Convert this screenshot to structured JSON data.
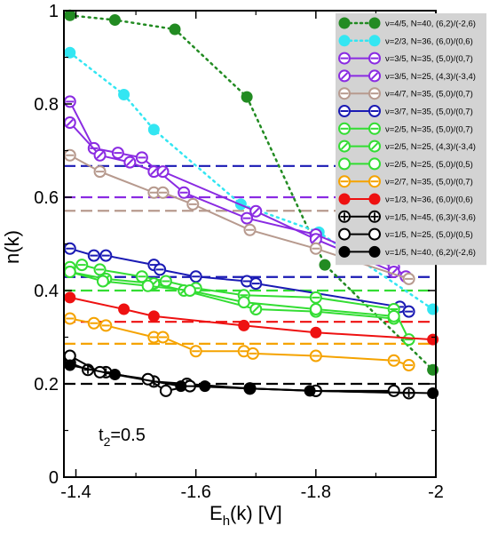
{
  "chart_data": {
    "type": "line",
    "xlabel_main": "E",
    "xlabel_sub": "h",
    "xlabel_rest": "(k) [V]",
    "ylabel": "n(k)",
    "xlim": [
      -1.38,
      -2.0
    ],
    "ylim": [
      0,
      1.0
    ],
    "xticks": [
      -1.4,
      -1.6,
      -1.8,
      -2.0
    ],
    "xtick_labels": [
      "-1.4",
      "-1.6",
      "-1.8",
      "-2"
    ],
    "yticks": [
      0,
      0.2,
      0.4,
      0.6,
      0.8,
      1.0
    ],
    "ytick_labels": [
      "0",
      "0.2",
      "0.4",
      "0.6",
      "0.8",
      "1"
    ],
    "annotation_main": "t",
    "annotation_sub": "2",
    "annotation_rest": "=0.5",
    "legend_position": "top-right",
    "hlines": [
      {
        "y": 0.667,
        "color": "#1a1ab4"
      },
      {
        "y": 0.6,
        "color": "#8a2be2"
      },
      {
        "y": 0.571,
        "color": "#b79a8e"
      },
      {
        "y": 0.429,
        "color": "#1a1ab4"
      },
      {
        "y": 0.4,
        "color": "#33dd33"
      },
      {
        "y": 0.333,
        "color": "#ee1111"
      },
      {
        "y": 0.286,
        "color": "#f5a300"
      },
      {
        "y": 0.2,
        "color": "#000000"
      }
    ],
    "series": [
      {
        "name": "ν=4/5, N=40, (6,2)/(-2,6)",
        "color": "#228b22",
        "marker": "filled",
        "line": "dotted",
        "x": [
          -1.39,
          -1.465,
          -1.565,
          -1.685,
          -1.815,
          -1.995
        ],
        "y": [
          0.99,
          0.98,
          0.96,
          0.815,
          0.455,
          0.23
        ]
      },
      {
        "name": "ν=2/3, N=36, (6,0)/(0,6)",
        "color": "#33e6f2",
        "marker": "filled",
        "line": "dotted",
        "x": [
          -1.39,
          -1.48,
          -1.53,
          -1.675,
          -1.805,
          -1.995
        ],
        "y": [
          0.91,
          0.82,
          0.745,
          0.585,
          0.525,
          0.36
        ]
      },
      {
        "name": "ν=3/5, N=35, (5,0)/(0,7)",
        "color": "#8a2be2",
        "marker": "bar",
        "line": "solid",
        "x": [
          -1.39,
          -1.43,
          -1.47,
          -1.51,
          -1.58,
          -1.685,
          -1.8,
          -1.93,
          -1.95
        ],
        "y": [
          0.805,
          0.705,
          0.695,
          0.685,
          0.61,
          0.555,
          0.52,
          0.45,
          0.43
        ]
      },
      {
        "name": "ν=3/5, N=25, (4,3)/(-3,4)",
        "color": "#8a2be2",
        "marker": "slash",
        "line": "solid",
        "x": [
          -1.39,
          -1.44,
          -1.49,
          -1.53,
          -1.545,
          -1.7,
          -1.8,
          -1.93
        ],
        "y": [
          0.76,
          0.69,
          0.675,
          0.655,
          0.655,
          0.57,
          0.51,
          0.44
        ]
      },
      {
        "name": "ν=4/7, N=35, (5,0)/(0,7)",
        "color": "#b79a8e",
        "marker": "bar",
        "line": "solid",
        "x": [
          -1.39,
          -1.44,
          -1.53,
          -1.545,
          -1.595,
          -1.69,
          -1.8,
          -1.955
        ],
        "y": [
          0.69,
          0.655,
          0.61,
          0.61,
          0.585,
          0.53,
          0.49,
          0.425
        ]
      },
      {
        "name": "ν=3/7, N=35, (5,0)/(0,7)",
        "color": "#1a1ab4",
        "marker": "bar",
        "line": "solid",
        "x": [
          -1.39,
          -1.43,
          -1.45,
          -1.53,
          -1.54,
          -1.6,
          -1.685,
          -1.7,
          -1.94,
          -1.955
        ],
        "y": [
          0.49,
          0.475,
          0.475,
          0.455,
          0.445,
          0.43,
          0.42,
          0.415,
          0.365,
          0.355
        ]
      },
      {
        "name": "ν=2/5, N=35, (5,0)/(0,7)",
        "color": "#33dd33",
        "marker": "bar",
        "line": "solid",
        "x": [
          -1.39,
          -1.41,
          -1.44,
          -1.51,
          -1.55,
          -1.6,
          -1.68,
          -1.8,
          -1.93,
          -1.955
        ],
        "y": [
          0.45,
          0.455,
          0.445,
          0.43,
          0.42,
          0.405,
          0.39,
          0.385,
          0.36,
          0.295
        ]
      },
      {
        "name": "ν=2/5, N=25, (4,3)/(-3,4)",
        "color": "#33dd33",
        "marker": "slash",
        "line": "solid",
        "x": [
          -1.39,
          -1.45,
          -1.53,
          -1.58,
          -1.7,
          -1.8,
          -1.93
        ],
        "y": [
          0.44,
          0.425,
          0.415,
          0.4,
          0.36,
          0.355,
          0.34
        ]
      },
      {
        "name": "ν=2/5, N=25, (5,0)/(0,5)",
        "color": "#33dd33",
        "marker": "open",
        "line": "solid",
        "x": [
          -1.39,
          -1.445,
          -1.52,
          -1.59,
          -1.68,
          -1.8,
          -1.93
        ],
        "y": [
          0.44,
          0.42,
          0.41,
          0.4,
          0.375,
          0.36,
          0.345
        ]
      },
      {
        "name": "ν=2/7, N=35, (5,0)/(0,7)",
        "color": "#f5a300",
        "marker": "bar",
        "line": "solid",
        "x": [
          -1.39,
          -1.43,
          -1.45,
          -1.53,
          -1.545,
          -1.6,
          -1.68,
          -1.695,
          -1.8,
          -1.93,
          -1.955
        ],
        "y": [
          0.34,
          0.33,
          0.325,
          0.3,
          0.3,
          0.27,
          0.27,
          0.265,
          0.26,
          0.25,
          0.24
        ]
      },
      {
        "name": "ν=1/3, N=36, (6,0)/(0,6)",
        "color": "#ee1111",
        "marker": "filled",
        "line": "solid",
        "x": [
          -1.39,
          -1.48,
          -1.53,
          -1.68,
          -1.8,
          -1.995
        ],
        "y": [
          0.385,
          0.36,
          0.345,
          0.325,
          0.31,
          0.295
        ]
      },
      {
        "name": "ν=1/5, N=45, (6,3)/(-3,6)",
        "color": "#000000",
        "marker": "cross",
        "line": "solid",
        "x": [
          -1.39,
          -1.42,
          -1.45,
          -1.53,
          -1.585,
          -1.69,
          -1.8,
          -1.955
        ],
        "y": [
          0.245,
          0.23,
          0.225,
          0.205,
          0.2,
          0.19,
          0.185,
          0.18
        ]
      },
      {
        "name": "ν=1/5, N=25, (5,0)/(0,5)",
        "color": "#000000",
        "marker": "open",
        "line": "solid",
        "x": [
          -1.39,
          -1.44,
          -1.52,
          -1.55,
          -1.59,
          -1.69,
          -1.8,
          -1.93
        ],
        "y": [
          0.26,
          0.225,
          0.21,
          0.185,
          0.195,
          0.19,
          0.185,
          0.185
        ]
      },
      {
        "name": "ν=1/5, N=40, (6,2)/(-2,6)",
        "color": "#000000",
        "marker": "filled",
        "line": "solid",
        "x": [
          -1.39,
          -1.465,
          -1.575,
          -1.615,
          -1.69,
          -1.79,
          -1.995
        ],
        "y": [
          0.24,
          0.22,
          0.195,
          0.195,
          0.19,
          0.185,
          0.18
        ]
      }
    ]
  }
}
